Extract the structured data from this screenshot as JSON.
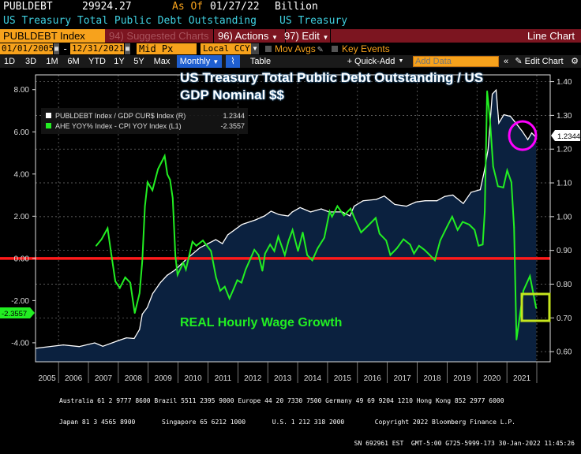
{
  "header": {
    "ticker": "PUBLDEBT",
    "last_value": "29924.27",
    "as_of_label": "As Of",
    "as_of_date": "01/27/22",
    "unit": "Billion",
    "description": "US Treasury Total Public Debt Outstanding",
    "source": "US Treasury"
  },
  "toolbar": {
    "security": "PUBLDEBT Index",
    "suggested": "94) Suggested Charts",
    "actions": "96) Actions",
    "edit": "97) Edit",
    "chart_type": "Line Chart",
    "start_date": "01/01/2005",
    "end_date": "12/31/2021",
    "price_field": "Mid Px",
    "currency": "Local CCY",
    "mov_avgs": "Mov Avgs",
    "key_events": "Key Events",
    "periods": [
      "1D",
      "3D",
      "1M",
      "6M",
      "YTD",
      "1Y",
      "5Y",
      "Max"
    ],
    "frequency": "Monthly",
    "table": "Table",
    "quick_add": "+ Quick-Add",
    "add_data_placeholder": "Add Data",
    "edit_chart": "Edit Chart"
  },
  "colors": {
    "green_series": "#22ee22",
    "white_series": "#ffffff",
    "area_fill": "#0b213f",
    "zero_line": "#ff1a1a",
    "circle_annotation": "#ff00ff",
    "box_annotation": "#c6e51e",
    "toolbar_red": "#7c1520",
    "input_orange": "#f7a21c"
  },
  "chart_data": {
    "type": "line",
    "title": "US Treasury Total Public Debt Outstanding / US GDP Nominal $$",
    "annotation_text": "REAL Hourly Wage Growth",
    "x_tick_labels": [
      "2005",
      "2006",
      "2007",
      "2008",
      "2009",
      "2010",
      "2011",
      "2012",
      "2013",
      "2014",
      "2015",
      "2016",
      "2017",
      "2018",
      "2019",
      "2020",
      "2021"
    ],
    "xlim": [
      2005.23,
      2022.0
    ],
    "left_axis": {
      "ticks": [
        "8.00",
        "6.00",
        "4.00",
        "2.00",
        "0.00",
        "-2.00",
        "-4.00"
      ],
      "ylim": [
        -4.9,
        8.7
      ]
    },
    "right_axis": {
      "ticks": [
        "1.40",
        "1.30",
        "1.20",
        "1.10",
        "1.00",
        "0.90",
        "0.80",
        "0.70",
        "0.60"
      ],
      "ylim": [
        0.57,
        1.42
      ]
    },
    "grid": true,
    "legend_position": "top-left",
    "reference_line_left_value": 0,
    "series": [
      {
        "name": "PUBLDEBT Index / GDP CUR$ Index (R)",
        "axis": "right",
        "last_label": "1.2344",
        "x": [
          2005.23,
          2006.16,
          2006.69,
          2007.21,
          2007.48,
          2008.01,
          2008.27,
          2008.53,
          2008.71,
          2008.8,
          2008.97,
          2009.15,
          2009.41,
          2009.63,
          2009.9,
          2010.29,
          2010.73,
          2011.26,
          2011.48,
          2011.66,
          2012.14,
          2012.58,
          2012.89,
          2013.11,
          2013.38,
          2013.68,
          2013.82,
          2014.08,
          2014.43,
          2014.79,
          2015.05,
          2015.49,
          2015.75,
          2015.89,
          2016.19,
          2016.63,
          2016.9,
          2017.25,
          2017.64,
          2017.95,
          2018.26,
          2018.66,
          2018.92,
          2019.19,
          2019.54,
          2019.8,
          2020.11,
          2020.24,
          2020.37,
          2020.51,
          2020.64,
          2020.73,
          2020.9,
          2021.12,
          2021.3,
          2021.52,
          2021.7,
          2021.83,
          2021.98
        ],
        "y": [
          0.61,
          0.62,
          0.615,
          0.626,
          0.616,
          0.633,
          0.641,
          0.639,
          0.666,
          0.711,
          0.731,
          0.772,
          0.805,
          0.826,
          0.842,
          0.875,
          0.908,
          0.932,
          0.92,
          0.946,
          0.977,
          0.99,
          1.002,
          1.016,
          1.006,
          1.002,
          1.014,
          1.027,
          1.014,
          1.023,
          1.014,
          1.014,
          1.002,
          1.031,
          1.047,
          1.051,
          1.061,
          1.036,
          1.031,
          1.043,
          1.047,
          1.047,
          1.06,
          1.064,
          1.039,
          1.072,
          1.08,
          1.133,
          1.199,
          1.363,
          1.375,
          1.277,
          1.302,
          1.297,
          1.277,
          1.252,
          1.228,
          1.248,
          1.2344
        ]
      },
      {
        "name": "AHE YOY% Index - CPI YOY Index (L1)",
        "axis": "left",
        "last_label": "-2.3557",
        "x": [
          2007.26,
          2007.44,
          2007.64,
          2007.75,
          2007.9,
          2008.05,
          2008.23,
          2008.4,
          2008.55,
          2008.71,
          2008.8,
          2008.89,
          2008.98,
          2009.14,
          2009.33,
          2009.55,
          2009.64,
          2009.73,
          2009.82,
          2009.91,
          2009.98,
          2010.17,
          2010.26,
          2010.48,
          2010.61,
          2010.83,
          2011.1,
          2011.27,
          2011.41,
          2011.56,
          2011.72,
          2011.85,
          2011.98,
          2012.12,
          2012.26,
          2012.55,
          2012.69,
          2012.82,
          2012.91,
          2013.08,
          2013.22,
          2013.35,
          2013.57,
          2013.7,
          2013.83,
          2014.01,
          2014.17,
          2014.32,
          2014.49,
          2014.67,
          2014.89,
          2015.07,
          2015.15,
          2015.33,
          2015.55,
          2015.77,
          2015.9,
          2016.12,
          2016.39,
          2016.61,
          2016.74,
          2016.96,
          2017.1,
          2017.32,
          2017.54,
          2017.76,
          2017.89,
          2018.06,
          2018.24,
          2018.42,
          2018.59,
          2018.77,
          2018.99,
          2019.17,
          2019.35,
          2019.52,
          2019.74,
          2019.92,
          2020.05,
          2020.19,
          2020.26,
          2020.34,
          2020.43,
          2020.54,
          2020.7,
          2020.88,
          2021.01,
          2021.15,
          2021.24,
          2021.32,
          2021.55,
          2021.77,
          2021.98
        ],
        "y": [
          0.6,
          0.91,
          1.43,
          0.35,
          -1.09,
          -1.4,
          -0.9,
          -1.15,
          -2.59,
          -1.65,
          -0.15,
          2.48,
          3.61,
          3.23,
          4.24,
          4.86,
          3.98,
          3.73,
          2.86,
          0.11,
          -0.78,
          -0.21,
          -0.53,
          0.79,
          0.6,
          0.85,
          0.35,
          -0.9,
          -1.53,
          -1.34,
          -1.9,
          -1.47,
          -1.03,
          -1.15,
          -0.53,
          0.41,
          0.16,
          -0.59,
          0.23,
          0.66,
          0.35,
          1.04,
          0.16,
          0.85,
          1.35,
          0.35,
          1.23,
          0.16,
          -0.09,
          0.48,
          0.98,
          2.23,
          1.98,
          2.48,
          2.04,
          2.36,
          1.92,
          1.23,
          1.6,
          1.92,
          1.17,
          0.85,
          0.16,
          0.48,
          0.91,
          0.66,
          0.23,
          0.6,
          0.41,
          0.16,
          -0.09,
          0.85,
          1.48,
          1.98,
          1.35,
          1.73,
          1.6,
          1.35,
          0.6,
          0.66,
          2.23,
          7.93,
          6.62,
          4.36,
          3.42,
          3.36,
          4.17,
          3.61,
          1.48,
          -3.85,
          -1.53,
          -0.84,
          -2.3557
        ]
      }
    ]
  },
  "footer": {
    "line1": "Australia 61 2 9777 8600 Brazil 5511 2395 9000 Europe 44 20 7330 7500 Germany 49 69 9204 1210 Hong Kong 852 2977 6000",
    "line2": "Japan 81 3 4565 8900       Singapore 65 6212 1000       U.S. 1 212 318 2000        Copyright 2022 Bloomberg Finance L.P.",
    "line3": "SN 692961 EST  GMT-5:00 G725-5999-173 30-Jan-2022 11:45:26"
  }
}
